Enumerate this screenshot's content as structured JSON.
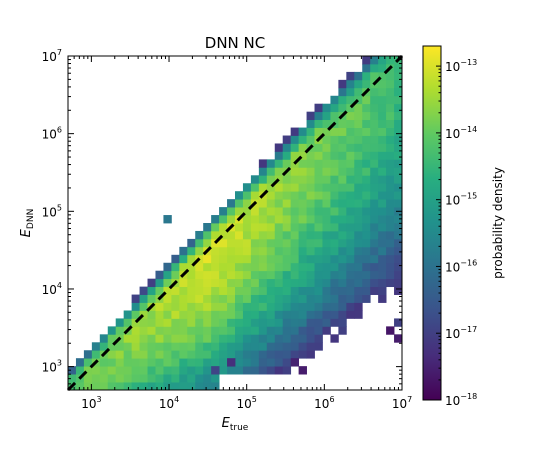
{
  "chart_data": {
    "type": "heatmap",
    "title": "DNN NC",
    "xlabel": {
      "main": "E",
      "sub": "true"
    },
    "ylabel": {
      "main": "E",
      "sub": "DNN"
    },
    "x_scale": "log",
    "y_scale": "log",
    "xlim": [
      500,
      10000000
    ],
    "ylim": [
      500,
      10000000
    ],
    "x_ticks": [
      {
        "value": 1000,
        "base": "10",
        "exp": "3"
      },
      {
        "value": 10000,
        "base": "10",
        "exp": "4"
      },
      {
        "value": 100000,
        "base": "10",
        "exp": "5"
      },
      {
        "value": 1000000,
        "base": "10",
        "exp": "6"
      },
      {
        "value": 10000000,
        "base": "10",
        "exp": "7"
      }
    ],
    "y_ticks": [
      {
        "value": 1000,
        "base": "10",
        "exp": "3"
      },
      {
        "value": 10000,
        "base": "10",
        "exp": "4"
      },
      {
        "value": 100000,
        "base": "10",
        "exp": "5"
      },
      {
        "value": 1000000,
        "base": "10",
        "exp": "6"
      },
      {
        "value": 10000000,
        "base": "10",
        "exp": "7"
      }
    ],
    "reference_line": {
      "style": "dashed",
      "color": "#000000",
      "description": "E_DNN = E_true"
    },
    "colorbar": {
      "label": "probability density",
      "scale": "log",
      "range": [
        1e-18,
        2e-13
      ],
      "ticks": [
        {
          "value": 1e-18,
          "base": "10",
          "exp": "−18"
        },
        {
          "value": 1e-17,
          "base": "10",
          "exp": "−17"
        },
        {
          "value": 1e-16,
          "base": "10",
          "exp": "−16"
        },
        {
          "value": 1e-15,
          "base": "10",
          "exp": "−15"
        },
        {
          "value": 1e-14,
          "base": "10",
          "exp": "−14"
        },
        {
          "value": 1e-13,
          "base": "10",
          "exp": "−13"
        }
      ],
      "colormap": "viridis"
    },
    "bins": 42,
    "density_model": {
      "description": "2D histogram of reconstructed vs true energy; density highest along diagonal near 1e4-1e5, decreasing with energy and with distance from diagonal",
      "peak_log10_density": -13.0,
      "min_log10_density": -18.0
    },
    "outlier_cells": [
      {
        "log10_true": 3.95,
        "log10_dnn": 4.85,
        "log10_density": -15.9
      },
      {
        "log10_true": 5.6,
        "log10_dnn": 3.08,
        "log10_density": -17.5
      },
      {
        "log10_true": 5.7,
        "log10_dnn": 2.95,
        "log10_density": -17.6
      },
      {
        "log10_true": 6.82,
        "log10_dnn": 3.5,
        "log10_density": -17.7
      },
      {
        "log10_true": 6.9,
        "log10_dnn": 3.4,
        "log10_density": -17.6
      },
      {
        "log10_true": 6.95,
        "log10_dnn": 3.6,
        "log10_density": -17.0
      },
      {
        "log10_true": 4.8,
        "log10_dnn": 3.05,
        "log10_density": -17.3
      },
      {
        "log10_true": 4.55,
        "log10_dnn": 2.92,
        "log10_density": -16.9
      }
    ]
  }
}
